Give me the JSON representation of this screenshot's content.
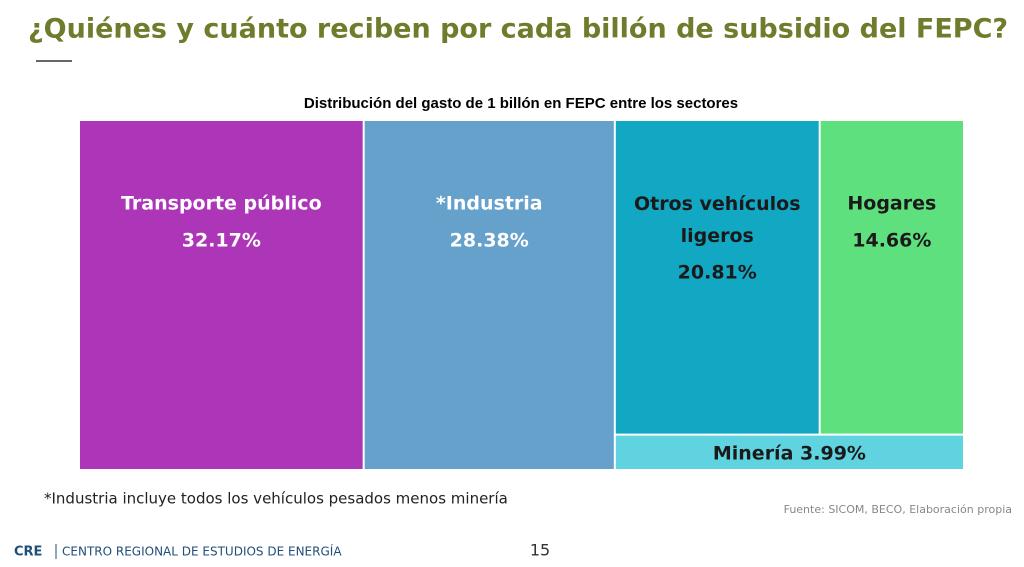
{
  "header": {
    "title": "¿Quiénes y cuánto reciben por cada billón de subsidio del FEPC?"
  },
  "chart_data": {
    "type": "treemap",
    "title": "Distribución del gasto de 1 billón en FEPC entre los sectores",
    "categories": [
      "Transporte público",
      "*Industria",
      "Otros vehículos ligeros",
      "Hogares",
      "Minería"
    ],
    "values": [
      32.17,
      28.38,
      20.81,
      14.66,
      3.99
    ],
    "value_labels": [
      "32.17%",
      "28.38%",
      "20.81%",
      "14.66%",
      "3.99%"
    ],
    "colors": [
      "#ad36b8",
      "#65a1cb",
      "#12a8c4",
      "#5fe07e",
      "#5fd4e0"
    ],
    "label_colors": [
      "#ffffff",
      "#ffffff",
      "#1a1a1a",
      "#1a1a1a",
      "#1a1a1a"
    ]
  },
  "footnote": "*Industria incluye todos los vehículos pesados menos minería",
  "source": "Fuente: SICOM, BECO, Elaboración propia",
  "footer": {
    "logo": "CRE",
    "organization": "CENTRO REGIONAL DE ESTUDIOS DE ENERGÍA",
    "page_number": 15
  }
}
